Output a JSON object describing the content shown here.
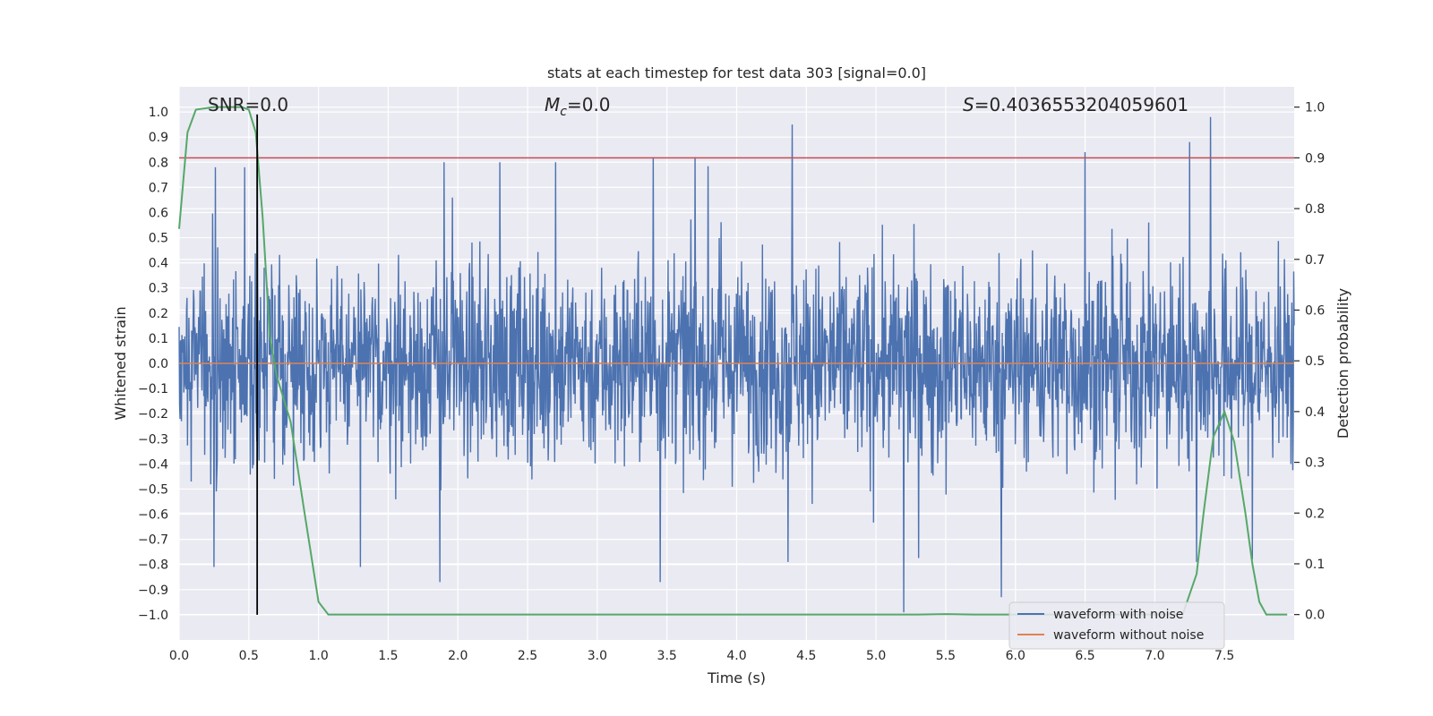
{
  "chart_data": {
    "type": "line",
    "title": "stats at each timestep for test data 303 [signal=0.0]",
    "xlabel": "Time (s)",
    "ylabel": "Whitened strain",
    "y2label": "Detection probability",
    "xlim": [
      0.0,
      8.0
    ],
    "ylim": [
      -1.1,
      1.1
    ],
    "y2lim": [
      -0.05,
      1.04
    ],
    "x_ticks": [
      "0.0",
      "0.5",
      "1.0",
      "1.5",
      "2.0",
      "2.5",
      "3.0",
      "3.5",
      "4.0",
      "4.5",
      "5.0",
      "5.5",
      "6.0",
      "6.5",
      "7.0",
      "7.5"
    ],
    "y_ticks": [
      "1.0",
      "0.9",
      "0.8",
      "0.7",
      "0.6",
      "0.5",
      "0.4",
      "0.3",
      "0.2",
      "0.1",
      "0.0",
      "−0.1",
      "−0.2",
      "−0.3",
      "−0.4",
      "−0.5",
      "−0.6",
      "−0.7",
      "−0.8",
      "−0.9",
      "−1.0"
    ],
    "y2_ticks": [
      "1.0",
      "0.9",
      "0.8",
      "0.7",
      "0.6",
      "0.5",
      "0.4",
      "0.3",
      "0.2",
      "0.1",
      "0.0"
    ],
    "grid": true,
    "legend_position": "lower-right",
    "annotations": {
      "snr": "SNR=0.0",
      "mc_symbol": "M",
      "mc_subscript": "c",
      "mc_value": "=0.0",
      "s_symbol": "S",
      "s_value": "=0.4036553204059601"
    },
    "threshold": {
      "y2_value": 0.9,
      "color": "#c44e52"
    },
    "vline": {
      "x_value": 0.56,
      "y_range": [
        -1.0,
        0.99
      ],
      "color": "#000000"
    },
    "series": [
      {
        "name": "waveform with noise",
        "color": "#4c72b0",
        "noise_amplitude_typical": 0.3,
        "max_value": 0.98,
        "min_value": -0.99,
        "spikes": [
          [
            0.26,
            0.78
          ],
          [
            0.47,
            0.78
          ],
          [
            0.56,
            0.95
          ],
          [
            1.9,
            0.8
          ],
          [
            2.3,
            0.8
          ],
          [
            2.7,
            0.8
          ],
          [
            3.4,
            0.82
          ],
          [
            3.7,
            0.82
          ],
          [
            4.4,
            0.95
          ],
          [
            6.5,
            0.84
          ],
          [
            7.25,
            0.88
          ],
          [
            7.4,
            0.98
          ],
          [
            0.25,
            -0.81
          ],
          [
            1.3,
            -0.81
          ],
          [
            1.87,
            -0.87
          ],
          [
            3.45,
            -0.87
          ],
          [
            4.37,
            -0.79
          ],
          [
            5.2,
            -0.99
          ],
          [
            5.9,
            -0.93
          ],
          [
            7.3,
            -0.79
          ],
          [
            7.7,
            -0.78
          ]
        ]
      },
      {
        "name": "waveform without noise",
        "color": "#dd8452",
        "constant_value": 0.0
      },
      {
        "name": "",
        "axis": "y2",
        "color": "#55a868",
        "x": [
          0.0,
          0.06,
          0.12,
          0.25,
          0.35,
          0.45,
          0.5,
          0.55,
          0.6,
          0.65,
          0.7,
          0.8,
          0.9,
          1.0,
          1.07,
          1.2,
          2.0,
          3.0,
          4.0,
          5.0,
          5.3,
          5.5,
          5.7,
          6.0,
          7.0,
          7.2,
          7.3,
          7.35,
          7.42,
          7.5,
          7.57,
          7.65,
          7.7,
          7.75,
          7.8,
          7.95
        ],
        "y": [
          0.76,
          0.95,
          0.995,
          1.0,
          1.0,
          1.0,
          0.995,
          0.95,
          0.78,
          0.55,
          0.47,
          0.38,
          0.2,
          0.025,
          0.0,
          0.0,
          0.0,
          0.0,
          0.0,
          0.0,
          0.0,
          0.001,
          0.0,
          0.0,
          0.0,
          0.0,
          0.08,
          0.2,
          0.35,
          0.4,
          0.34,
          0.2,
          0.1,
          0.025,
          0.0,
          0.0
        ]
      }
    ],
    "colors": {
      "plot_background": "#eaeaf2",
      "grid": "#ffffff"
    }
  }
}
